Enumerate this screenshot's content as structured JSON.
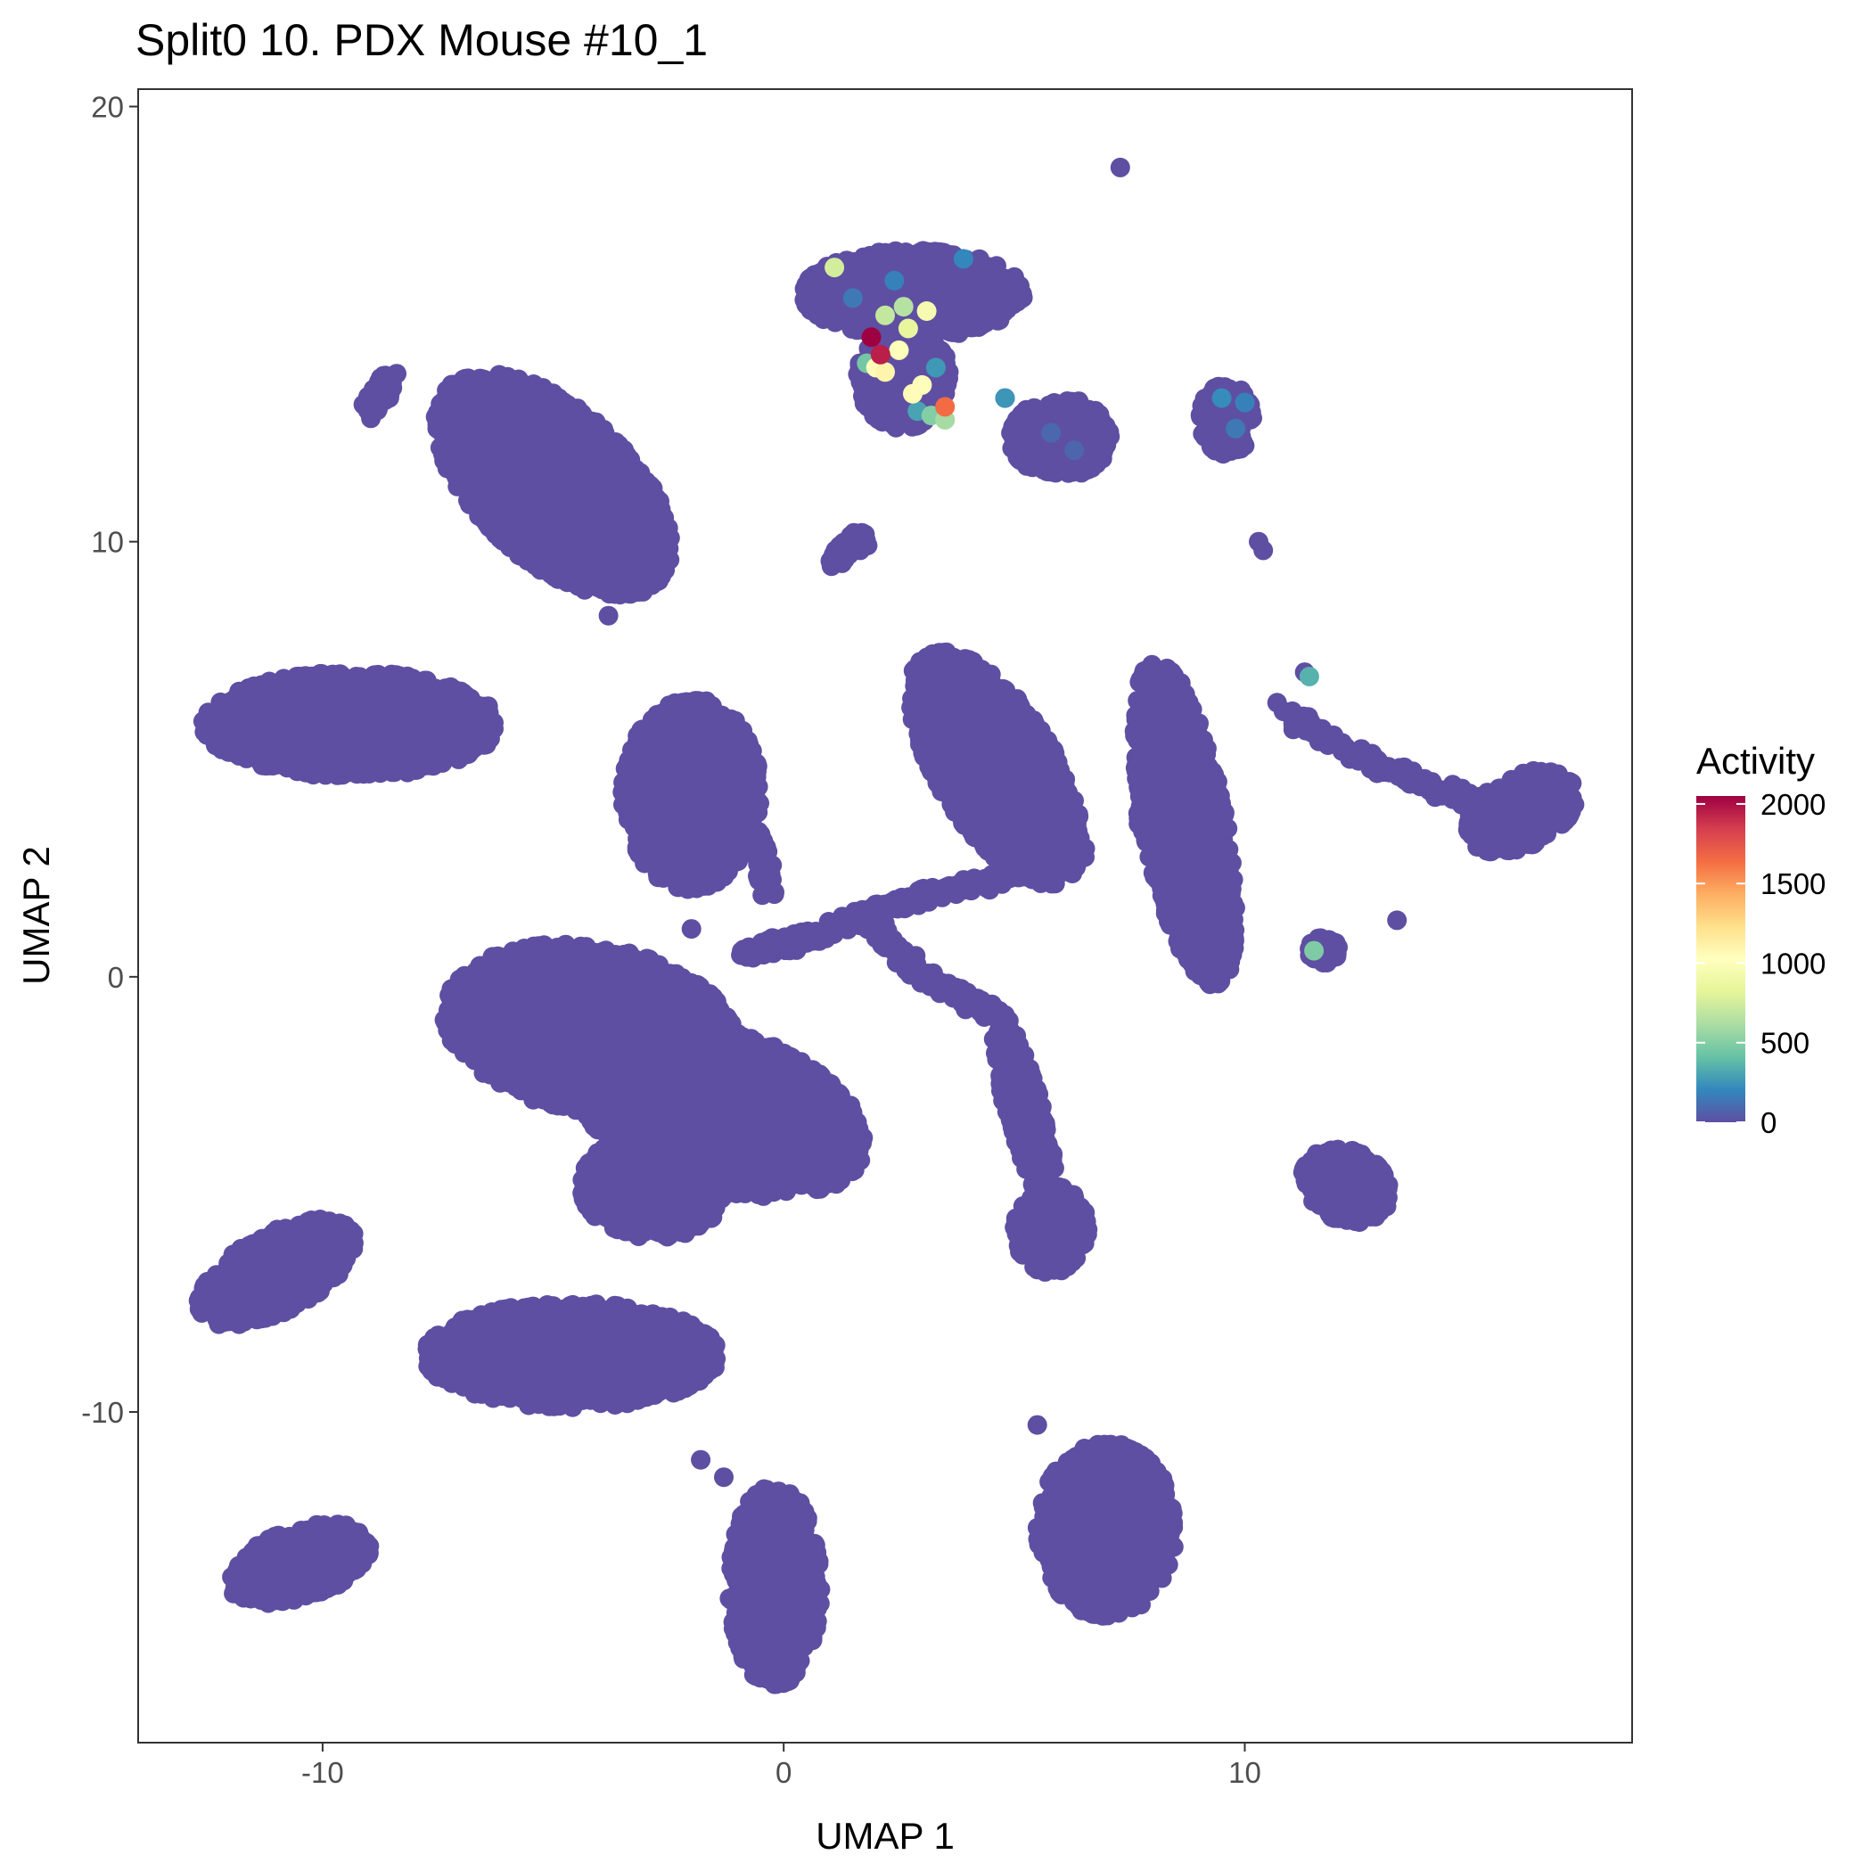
{
  "chart_data": {
    "type": "scatter",
    "title": "Split0 10. PDX Mouse #10_1",
    "xlabel": "UMAP 1",
    "ylabel": "UMAP 2",
    "xlim": [
      -14,
      18.4
    ],
    "ylim": [
      -17.6,
      20.4
    ],
    "x_ticks": [
      -10,
      0,
      10
    ],
    "y_ticks": [
      -10,
      0,
      10,
      20
    ],
    "grid": false,
    "point_color_default": "#5e4fa2",
    "colorbar": {
      "title": "Activity",
      "min": 0,
      "max": 2050,
      "ticks": [
        0,
        500,
        1000,
        1500,
        2000
      ],
      "colors": [
        "#5e4fa2",
        "#3288bd",
        "#66c2a5",
        "#abdda4",
        "#e6f598",
        "#ffffbf",
        "#fee08b",
        "#fdae61",
        "#f46d43",
        "#d53e4f",
        "#9e0142"
      ]
    },
    "clusters": [
      {
        "cx": -5.0,
        "cy": 11.3,
        "rx": 3.2,
        "ry": 1.7,
        "angle": -45
      },
      {
        "cx": -9.4,
        "cy": 5.8,
        "rx": 3.2,
        "ry": 1.2,
        "angle": 0
      },
      {
        "cx": -2.0,
        "cy": 4.2,
        "rx": 1.5,
        "ry": 2.2,
        "angle": 0
      },
      {
        "cx": 4.6,
        "cy": 4.8,
        "rx": 1.3,
        "ry": 3.0,
        "angle": 30
      },
      {
        "cx": 8.7,
        "cy": 3.5,
        "rx": 0.9,
        "ry": 3.8,
        "angle": 10
      },
      {
        "cx": -4.2,
        "cy": -1.2,
        "rx": 3.2,
        "ry": 1.9,
        "angle": -10
      },
      {
        "cx": -1.5,
        "cy": -3.0,
        "rx": 3.4,
        "ry": 1.8,
        "angle": -20
      },
      {
        "cx": -2.8,
        "cy": -4.8,
        "rx": 1.6,
        "ry": 1.2,
        "angle": 0
      },
      {
        "cx": 5.8,
        "cy": -5.8,
        "rx": 0.8,
        "ry": 1.0,
        "angle": 0
      },
      {
        "cx": 5.2,
        "cy": -3.0,
        "rx": 0.4,
        "ry": 2.4,
        "angle": 15
      },
      {
        "cx": 16.0,
        "cy": 3.8,
        "rx": 1.3,
        "ry": 0.8,
        "angle": 30
      },
      {
        "cx": 12.2,
        "cy": -4.8,
        "rx": 1.0,
        "ry": 0.8,
        "angle": -30
      },
      {
        "cx": -11.0,
        "cy": -6.8,
        "rx": 1.9,
        "ry": 0.9,
        "angle": 30
      },
      {
        "cx": -4.6,
        "cy": -8.7,
        "rx": 3.2,
        "ry": 1.2,
        "angle": 0
      },
      {
        "cx": -10.5,
        "cy": -13.5,
        "rx": 1.6,
        "ry": 0.8,
        "angle": 20
      },
      {
        "cx": -0.2,
        "cy": -14.0,
        "rx": 1.0,
        "ry": 2.3,
        "angle": 0
      },
      {
        "cx": 7.0,
        "cy": -12.7,
        "rx": 1.5,
        "ry": 2.0,
        "angle": 0
      },
      {
        "cx": 2.8,
        "cy": 15.7,
        "rx": 2.4,
        "ry": 1.0,
        "angle": 0
      },
      {
        "cx": 2.6,
        "cy": 13.8,
        "rx": 1.0,
        "ry": 1.2,
        "angle": 0
      },
      {
        "cx": 6.0,
        "cy": 12.4,
        "rx": 1.1,
        "ry": 0.9,
        "angle": 0
      },
      {
        "cx": 9.6,
        "cy": 12.8,
        "rx": 0.6,
        "ry": 0.8,
        "angle": 0
      },
      {
        "cx": 11.7,
        "cy": 0.6,
        "rx": 0.35,
        "ry": 0.3,
        "angle": 0
      }
    ],
    "trajectories": [
      {
        "x": [
          -0.9,
          0.5,
          2.5,
          4.5,
          6.5
        ],
        "y": [
          0.5,
          0.9,
          1.7,
          2.2,
          2.9
        ]
      },
      {
        "x": [
          1.8,
          3.0,
          4.5
        ],
        "y": [
          1.3,
          0.0,
          -0.8
        ]
      },
      {
        "x": [
          10.9,
          13.0,
          15.0
        ],
        "y": [
          6.0,
          4.8,
          4.0
        ]
      },
      {
        "x": [
          -9.0,
          -8.5
        ],
        "y": [
          13.0,
          13.8
        ]
      },
      {
        "x": [
          1.1,
          1.7
        ],
        "y": [
          9.6,
          10.1
        ]
      },
      {
        "x": [
          7.8,
          8.6
        ],
        "y": [
          3.6,
          2.4
        ]
      },
      {
        "x": [
          -0.6,
          -0.3
        ],
        "y": [
          3.3,
          2.0
        ]
      }
    ],
    "outliers": [
      {
        "x": 7.3,
        "y": 18.6
      },
      {
        "x": 10.3,
        "y": 10.0
      },
      {
        "x": 10.4,
        "y": 9.8
      },
      {
        "x": 11.3,
        "y": 7.0
      },
      {
        "x": 10.7,
        "y": 6.3
      },
      {
        "x": 13.3,
        "y": 1.3
      },
      {
        "x": -1.8,
        "y": -11.1
      },
      {
        "x": -1.3,
        "y": -11.5
      },
      {
        "x": 5.5,
        "y": -10.3
      },
      {
        "x": -3.8,
        "y": 8.3
      },
      {
        "x": -2.0,
        "y": 1.1
      },
      {
        "x": 4.8,
        "y": 13.3
      }
    ],
    "highlighted_points": [
      {
        "x": 1.9,
        "y": 14.7,
        "value": 2050
      },
      {
        "x": 2.1,
        "y": 14.3,
        "value": 1950
      },
      {
        "x": 3.5,
        "y": 13.1,
        "value": 1650
      },
      {
        "x": 2.0,
        "y": 14.0,
        "value": 1050
      },
      {
        "x": 2.2,
        "y": 13.9,
        "value": 1100
      },
      {
        "x": 2.5,
        "y": 14.4,
        "value": 1000
      },
      {
        "x": 2.8,
        "y": 13.4,
        "value": 1050
      },
      {
        "x": 3.0,
        "y": 13.6,
        "value": 1000
      },
      {
        "x": 3.1,
        "y": 15.3,
        "value": 950
      },
      {
        "x": 2.7,
        "y": 14.9,
        "value": 850
      },
      {
        "x": 1.1,
        "y": 16.3,
        "value": 750
      },
      {
        "x": 2.2,
        "y": 15.2,
        "value": 700
      },
      {
        "x": 2.6,
        "y": 15.4,
        "value": 650
      },
      {
        "x": 3.5,
        "y": 12.8,
        "value": 600
      },
      {
        "x": 3.2,
        "y": 12.9,
        "value": 500
      },
      {
        "x": 1.8,
        "y": 14.1,
        "value": 450
      },
      {
        "x": 11.5,
        "y": 0.6,
        "value": 480
      },
      {
        "x": 11.4,
        "y": 6.9,
        "value": 350
      },
      {
        "x": 4.8,
        "y": 13.3,
        "value": 250
      },
      {
        "x": 2.4,
        "y": 16.0,
        "value": 180
      },
      {
        "x": 3.9,
        "y": 16.5,
        "value": 200
      },
      {
        "x": 1.5,
        "y": 15.6,
        "value": 150
      },
      {
        "x": 9.5,
        "y": 13.3,
        "value": 220
      },
      {
        "x": 10.0,
        "y": 13.2,
        "value": 180
      },
      {
        "x": 9.8,
        "y": 12.6,
        "value": 150
      },
      {
        "x": 5.8,
        "y": 12.5,
        "value": 90
      },
      {
        "x": 6.3,
        "y": 12.1,
        "value": 80
      },
      {
        "x": 2.9,
        "y": 13.0,
        "value": 300
      },
      {
        "x": 3.3,
        "y": 14.0,
        "value": 260
      }
    ]
  }
}
